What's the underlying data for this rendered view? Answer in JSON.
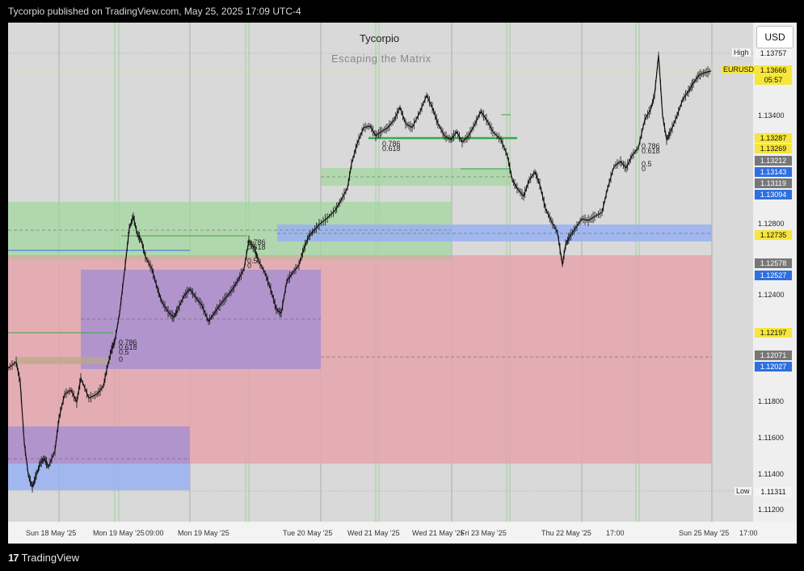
{
  "header": {
    "publisher_text": "Tycorpio published on TradingView.com, May 25, 2025 17:09 UTC-4"
  },
  "chart": {
    "title": "Tycorpio",
    "subtitle": "Escaping the Matrix",
    "currency_button": "USD",
    "symbol": "EURUSD",
    "countdown": "05:57",
    "colors": {
      "background": "#d9d9d9",
      "candles": "#000000",
      "green_zone": "#9fd69c",
      "blue_zone": "#9bb3ef",
      "purple_zone": "#a88fd0",
      "red_zone": "#e4a5ab",
      "label_yellow": "#f5e63b",
      "label_blue": "#2f6fe0",
      "label_gray": "#777777"
    },
    "price_axis": {
      "ticks": [
        "1.13400",
        "1.12800",
        "1.12400",
        "1.11800",
        "1.11600",
        "1.11400",
        "1.11200"
      ],
      "high_label": "High",
      "high_value": "1.13757",
      "low_label": "Low",
      "low_value": "1.11311",
      "current_price": "1.13666",
      "labels": [
        {
          "value": "1.13287",
          "kind": "yellow"
        },
        {
          "value": "1.13269",
          "kind": "yellow"
        },
        {
          "value": "1.13212",
          "kind": "gray"
        },
        {
          "value": "1.13143",
          "kind": "blue"
        },
        {
          "value": "1.13119",
          "kind": "gray"
        },
        {
          "value": "1.13094",
          "kind": "blue"
        },
        {
          "value": "1.12735",
          "kind": "yellow"
        },
        {
          "value": "1.12578",
          "kind": "gray"
        },
        {
          "value": "1.12527",
          "kind": "blue"
        },
        {
          "value": "1.12197",
          "kind": "yellow"
        },
        {
          "value": "1.12071",
          "kind": "gray"
        },
        {
          "value": "1.12027",
          "kind": "blue"
        }
      ]
    },
    "time_axis": [
      "Sun 18 May '25",
      "Mon 19 May '25",
      "09:00",
      "Tue 20 May '25",
      "Wed 21 May '25",
      "Thu 22 May '25",
      "Fri 23 May '25",
      "Sun 25 May '25",
      "17:00"
    ],
    "fib_labels": [
      "0.786",
      "0.618",
      "0.5",
      "0"
    ]
  },
  "footer": {
    "brand": "TradingView"
  }
}
